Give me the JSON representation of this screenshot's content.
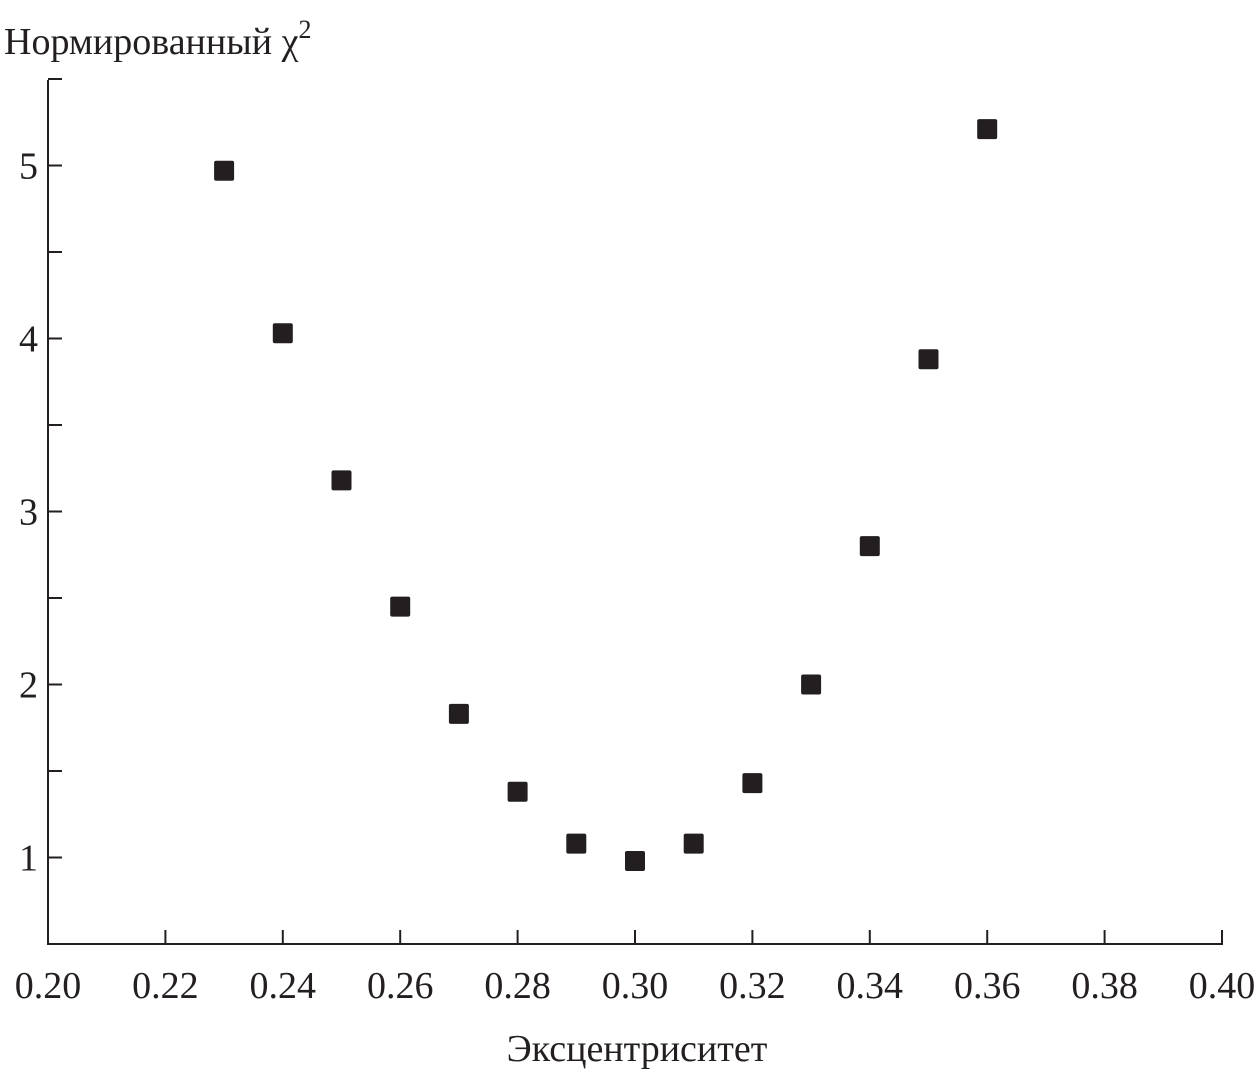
{
  "chart_data": {
    "type": "scatter",
    "title": "",
    "ylabel": "Нормированный χ",
    "ylabel_superscript": "2",
    "xlabel": "Эксцентриситет",
    "xlim": [
      0.2,
      0.4
    ],
    "ylim": [
      0.5,
      5.5
    ],
    "x_ticks": [
      "0.20",
      "0.22",
      "0.24",
      "0.26",
      "0.28",
      "0.30",
      "0.32",
      "0.34",
      "0.36",
      "0.38",
      "0.40"
    ],
    "y_ticks": [
      "1",
      "2",
      "3",
      "4",
      "5"
    ],
    "y_minor_step": 0.5,
    "grid": false,
    "marker": "square",
    "marker_color": "#231f20",
    "x": [
      0.23,
      0.24,
      0.25,
      0.26,
      0.27,
      0.28,
      0.29,
      0.3,
      0.31,
      0.32,
      0.33,
      0.34,
      0.35,
      0.36
    ],
    "y": [
      4.97,
      4.03,
      3.18,
      2.45,
      1.83,
      1.38,
      1.08,
      0.98,
      1.08,
      1.43,
      2.0,
      2.8,
      3.88,
      5.21
    ]
  }
}
